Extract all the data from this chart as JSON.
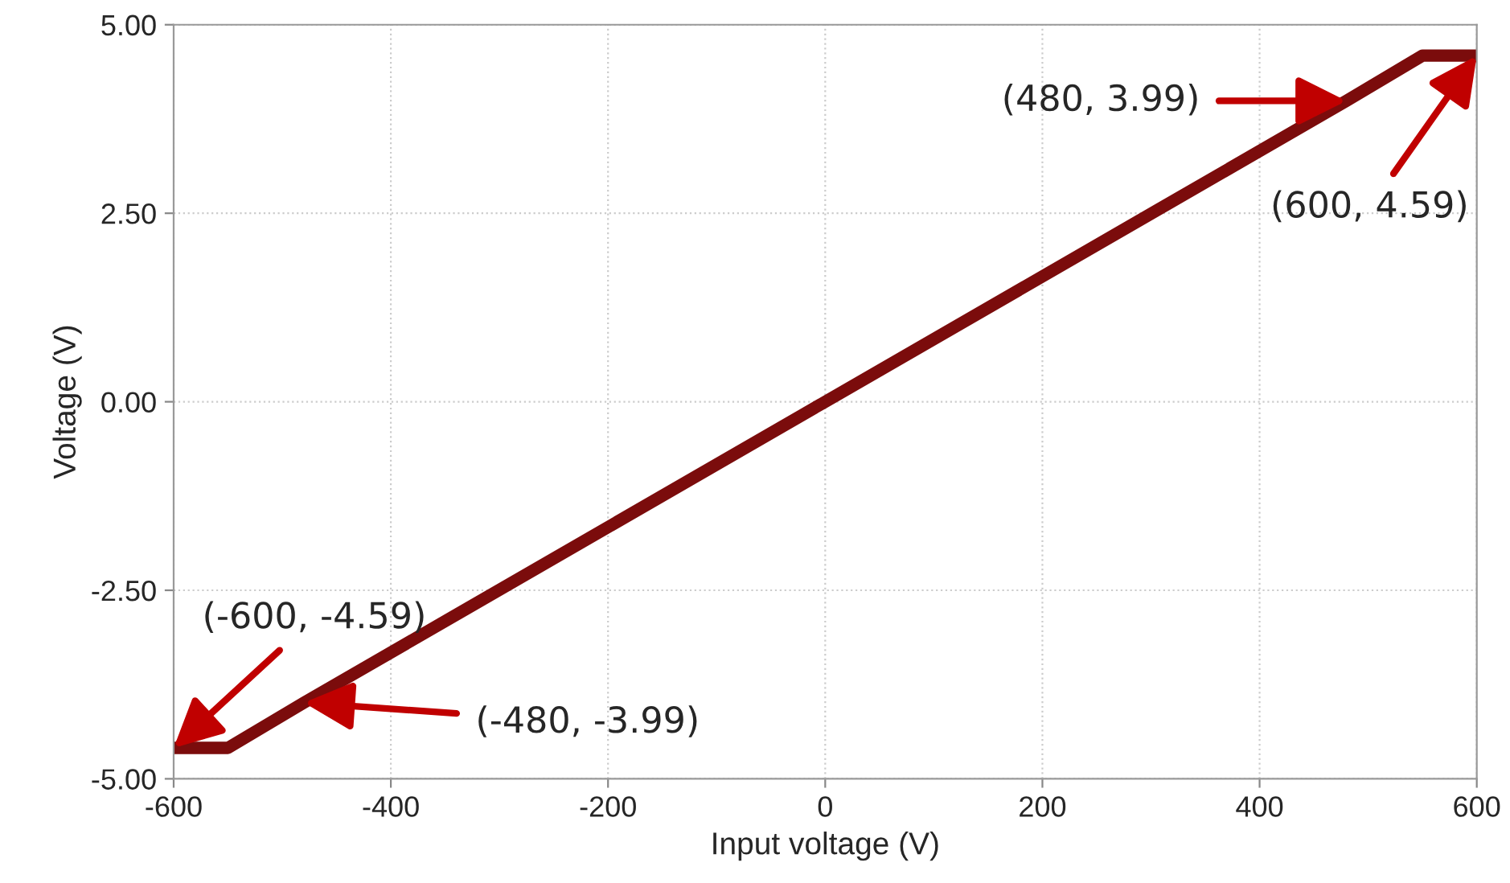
{
  "chart_data": {
    "type": "line",
    "xlabel": "Input voltage (V)",
    "ylabel": "Voltage (V)",
    "x": [
      -600,
      -550,
      -480,
      0,
      480,
      550,
      600
    ],
    "series": [
      {
        "color": "#7b0c0c",
        "values": [
          -4.59,
          -4.59,
          -3.99,
          0,
          3.99,
          4.59,
          4.59
        ]
      }
    ],
    "xlim": [
      -600,
      600
    ],
    "xticks": [
      -600,
      -400,
      -200,
      0,
      200,
      400,
      600
    ],
    "ylim": [
      -5,
      5
    ],
    "yticks": [
      {
        "value": -5,
        "label": "-5.00"
      },
      {
        "value": -2.5,
        "label": "-2.50"
      },
      {
        "value": 0,
        "label": "0.00"
      },
      {
        "value": 2.5,
        "label": "2.50"
      },
      {
        "value": 5,
        "label": "5.00"
      }
    ],
    "grid": true,
    "line_style": "solid",
    "marker": "none",
    "annotations": [
      {
        "text": "(480, 3.99)",
        "x": 480,
        "y": 3.99
      },
      {
        "text": "(600, 4.59)",
        "x": 600,
        "y": 4.59
      },
      {
        "text": "(-600, -4.59)",
        "x": -600,
        "y": -4.59
      },
      {
        "text": "(-480, -3.99)",
        "x": -480,
        "y": -3.99
      }
    ]
  }
}
